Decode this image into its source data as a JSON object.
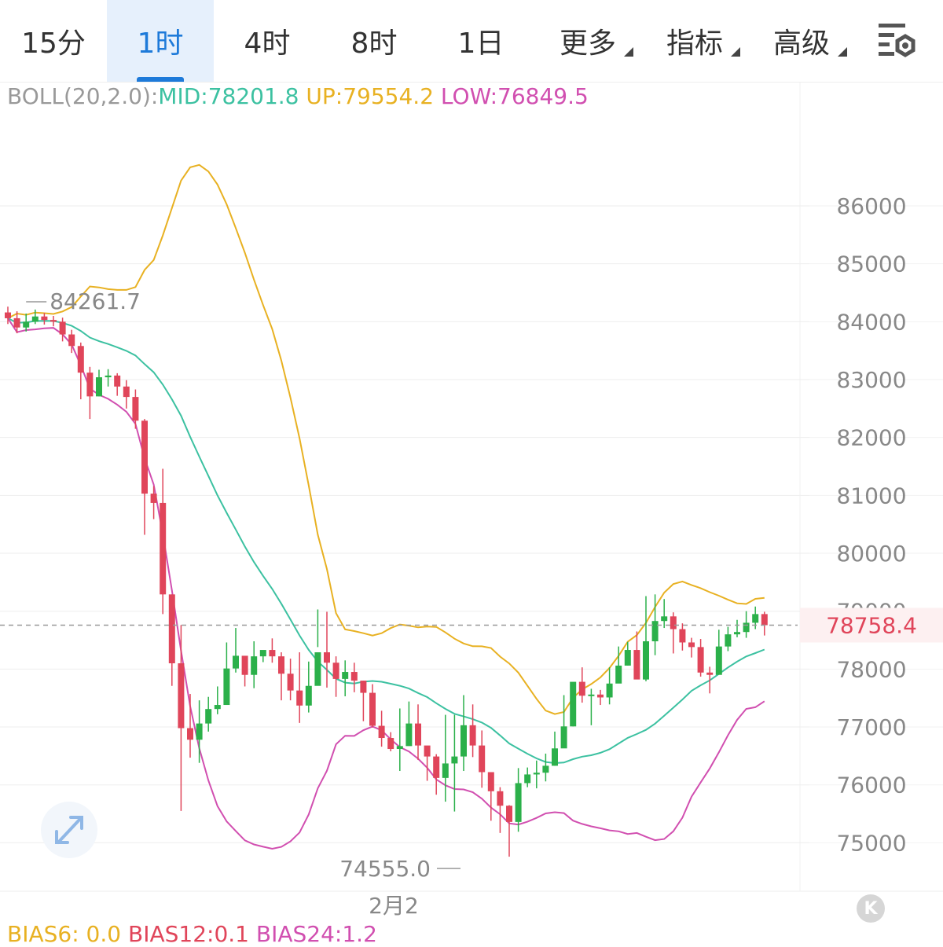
{
  "tabs": [
    {
      "label": "15分",
      "active": false,
      "dropdown": false
    },
    {
      "label": "1时",
      "active": true,
      "dropdown": false
    },
    {
      "label": "4时",
      "active": false,
      "dropdown": false
    },
    {
      "label": "8时",
      "active": false,
      "dropdown": false
    },
    {
      "label": "1日",
      "active": false,
      "dropdown": false
    },
    {
      "label": "更多",
      "active": false,
      "dropdown": true
    },
    {
      "label": "指标",
      "active": false,
      "dropdown": true
    },
    {
      "label": "高级",
      "active": false,
      "dropdown": true
    }
  ],
  "indicator": {
    "boll_label": "BOLL(20,2.0):",
    "mid_label": "MID:78201.8",
    "up_label": "UP:79554.2",
    "low_label": "LOW:76849.5"
  },
  "bias": {
    "b6": "BIAS6: 0.0",
    "b12": "BIAS12:0.1",
    "b24": "BIAS24:1.2"
  },
  "colors": {
    "up": "#2bb04a",
    "down": "#e0455a",
    "mid": "#3cc1a1",
    "upper": "#e8b122",
    "lower": "#d14fb0",
    "accent": "#1e7ad9",
    "price_text": "#e0455a",
    "axis_text": "#888888"
  },
  "icons": {
    "settings": "chart-settings-gear-icon",
    "expand": "expand-arrows-icon",
    "logo": "k-logo-icon"
  },
  "chart_data": {
    "type": "candlestick",
    "title": "",
    "y_ticks": [
      86000,
      85000,
      84000,
      83000,
      82000,
      81000,
      80000,
      79000,
      78000,
      77000,
      76000,
      75000
    ],
    "y_tick_labels": [
      "86000",
      "85000",
      "84000",
      "83000",
      "82000",
      "81000",
      "80000",
      "79000",
      "78000",
      "77000",
      "76000",
      "75000"
    ],
    "ylim": [
      74450,
      87500
    ],
    "x_label": "2月2",
    "x_label_index": 40,
    "current_price": 78758.4,
    "current_price_label": "78758.4",
    "high_marker": {
      "label": "84261.7",
      "value": 84261.7,
      "index": 2
    },
    "low_marker": {
      "label": "74555.0",
      "value": 74555.0,
      "index": 50
    },
    "candles": [
      [
        84160,
        84060,
        84260,
        83960
      ],
      [
        84060,
        83900,
        84180,
        83800
      ],
      [
        83900,
        84000,
        84140,
        83830
      ],
      [
        84000,
        84090,
        84210,
        83960
      ],
      [
        84090,
        84030,
        84150,
        83950
      ],
      [
        84030,
        84000,
        84100,
        83920
      ],
      [
        84000,
        83780,
        84070,
        83660
      ],
      [
        83780,
        83580,
        83860,
        83460
      ],
      [
        83580,
        83120,
        83640,
        82660
      ],
      [
        83120,
        82710,
        83220,
        82320
      ],
      [
        82710,
        83040,
        83170,
        82710
      ],
      [
        83040,
        83070,
        83180,
        82880
      ],
      [
        83070,
        82880,
        83110,
        82720
      ],
      [
        82880,
        82700,
        82990,
        82500
      ],
      [
        82700,
        82290,
        82830,
        82150
      ],
      [
        82290,
        81030,
        82320,
        80320
      ],
      [
        81030,
        80870,
        81160,
        80590
      ],
      [
        80870,
        79290,
        81460,
        78950
      ],
      [
        79290,
        78100,
        79290,
        77710
      ],
      [
        78100,
        76980,
        78760,
        75550
      ],
      [
        76980,
        76780,
        77570,
        76470
      ],
      [
        76780,
        77060,
        77460,
        76380
      ],
      [
        77060,
        77310,
        77520,
        76920
      ],
      [
        77310,
        77380,
        77700,
        77220
      ],
      [
        77380,
        78010,
        78460,
        77390
      ],
      [
        78010,
        78230,
        78710,
        77940
      ],
      [
        78230,
        77900,
        78200,
        77700
      ],
      [
        77900,
        78220,
        78480,
        77670
      ],
      [
        78220,
        78330,
        78310,
        78120
      ],
      [
        78330,
        78220,
        78530,
        78110
      ],
      [
        78220,
        77920,
        78290,
        77460
      ],
      [
        77920,
        77630,
        78180,
        77460
      ],
      [
        77630,
        77370,
        78290,
        77070
      ],
      [
        77370,
        77710,
        78130,
        77250
      ],
      [
        77710,
        78290,
        79030,
        78380
      ],
      [
        78290,
        78110,
        78990,
        77680
      ],
      [
        78110,
        77830,
        78220,
        77520
      ],
      [
        77830,
        77950,
        78150,
        77530
      ],
      [
        77950,
        77800,
        78110,
        77600
      ],
      [
        77800,
        77590,
        77800,
        77100
      ],
      [
        77590,
        77020,
        77740,
        76990
      ],
      [
        77020,
        76810,
        77280,
        76660
      ],
      [
        76810,
        76620,
        76910,
        76580
      ],
      [
        76620,
        76670,
        77320,
        76240
      ],
      [
        76670,
        77060,
        77440,
        76890
      ],
      [
        77060,
        76680,
        77390,
        76430
      ],
      [
        76680,
        76490,
        76520,
        76070
      ],
      [
        76490,
        76120,
        76530,
        75830
      ],
      [
        76120,
        76370,
        77210,
        75710
      ],
      [
        76370,
        76490,
        77210,
        75540
      ],
      [
        76490,
        77030,
        77550,
        76240
      ],
      [
        77030,
        76680,
        77390,
        76480
      ],
      [
        76680,
        76220,
        76940,
        75950
      ],
      [
        76220,
        75890,
        76120,
        75380
      ],
      [
        75890,
        75640,
        75960,
        75170
      ],
      [
        75640,
        75360,
        75650,
        74760
      ],
      [
        75360,
        76030,
        76290,
        75190
      ],
      [
        76030,
        76180,
        76300,
        75960
      ],
      [
        76180,
        76210,
        76420,
        75940
      ],
      [
        76210,
        76330,
        76540,
        76060
      ],
      [
        76330,
        76630,
        76920,
        76330
      ],
      [
        76630,
        77010,
        77550,
        76650
      ],
      [
        77010,
        77780,
        77750,
        77010
      ],
      [
        77780,
        77540,
        78030,
        77420
      ],
      [
        77540,
        77560,
        77660,
        77030
      ],
      [
        77560,
        77510,
        77640,
        77380
      ],
      [
        77510,
        77750,
        78030,
        77390
      ],
      [
        77750,
        78060,
        78390,
        77760
      ],
      [
        78060,
        78330,
        78470,
        78060
      ],
      [
        78330,
        77820,
        78650,
        77940
      ],
      [
        77820,
        78480,
        79260,
        77790
      ],
      [
        78480,
        78830,
        79290,
        78240
      ],
      [
        78830,
        78910,
        79210,
        78710
      ],
      [
        78910,
        78690,
        78980,
        78270
      ],
      [
        78690,
        78460,
        78790,
        78320
      ],
      [
        78460,
        78380,
        78540,
        78200
      ],
      [
        78380,
        77940,
        78520,
        77870
      ],
      [
        77940,
        77900,
        78040,
        77580
      ],
      [
        77900,
        78390,
        78680,
        77920
      ],
      [
        78390,
        78600,
        78730,
        78310
      ],
      [
        78600,
        78640,
        78850,
        78550
      ],
      [
        78640,
        78800,
        79000,
        78540
      ],
      [
        78800,
        78950,
        79080,
        78690
      ],
      [
        78950,
        78758.4,
        78990,
        78580
      ]
    ]
  }
}
